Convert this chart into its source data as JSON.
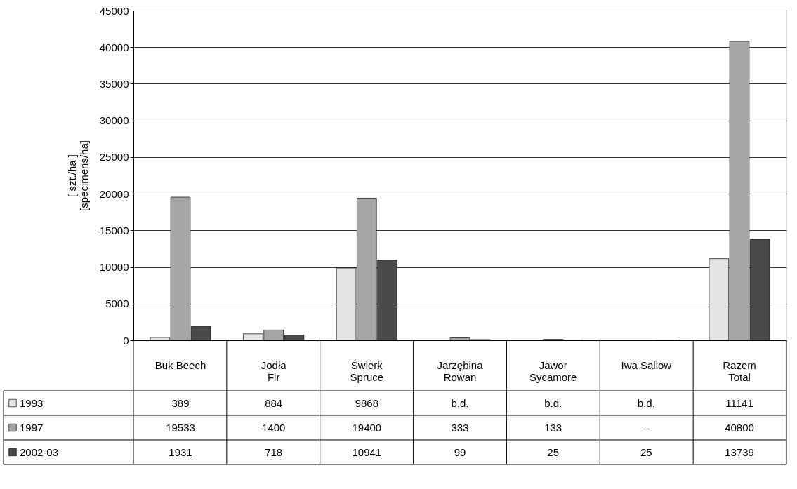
{
  "chart_data": {
    "type": "bar",
    "ylabel": "[ szt./ha ]\n[specimens/ha]",
    "categories": [
      "Buk  Beech",
      "Jodła\nFir",
      "Świerk\nSpruce",
      "Jarzębina\nRowan",
      "Jawor\nSycamore",
      "Iwa Sallow",
      "Razem\nTotal"
    ],
    "series": [
      {
        "name": "1993",
        "color": "#e4e4e4",
        "values": [
          389,
          884,
          9868,
          null,
          null,
          null,
          11141
        ],
        "value_labels": [
          "389",
          "884",
          "9868",
          "b.d.",
          "b.d.",
          "b.d.",
          "11141"
        ]
      },
      {
        "name": "1997",
        "color": "#a6a6a6",
        "values": [
          19533,
          1400,
          19400,
          333,
          133,
          null,
          40800
        ],
        "value_labels": [
          "19533",
          "1400",
          "19400",
          "333",
          "133",
          "–",
          "40800"
        ]
      },
      {
        "name": "2002-03",
        "color": "#4a4a4a",
        "values": [
          1931,
          718,
          10941,
          99,
          25,
          25,
          13739
        ],
        "value_labels": [
          "1931",
          "718",
          "10941",
          "99",
          "25",
          "25",
          "13739"
        ]
      }
    ],
    "ylim": [
      0,
      45000
    ],
    "yticks": [
      0,
      5000,
      10000,
      15000,
      20000,
      25000,
      30000,
      35000,
      40000,
      45000
    ],
    "grid": "y",
    "legend": "bottom"
  }
}
